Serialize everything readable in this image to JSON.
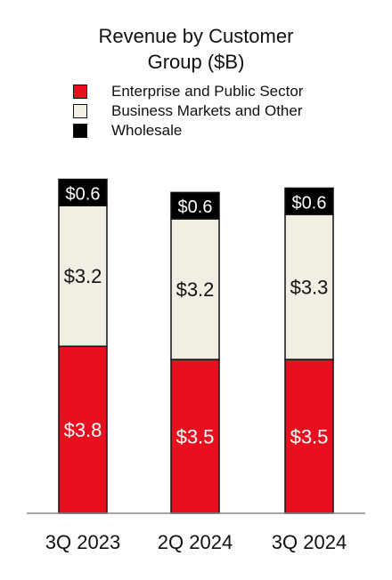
{
  "chart_data": {
    "type": "bar",
    "stacked": true,
    "title": "Revenue by Customer Group ($B)",
    "title_lines": [
      "Revenue by Customer",
      "Group ($B)"
    ],
    "categories": [
      "3Q 2023",
      "2Q 2024",
      "3Q 2024"
    ],
    "series": [
      {
        "name": "Enterprise and Public Sector",
        "color": "#e8101f",
        "values": [
          3.8,
          3.5,
          3.5
        ],
        "labels": [
          "$3.8",
          "$3.5",
          "$3.5"
        ],
        "label_color": "#ffffff"
      },
      {
        "name": "Business Markets and Other",
        "color": "#f3eee3",
        "values": [
          3.2,
          3.2,
          3.3
        ],
        "labels": [
          "$3.2",
          "$3.2",
          "$3.3"
        ],
        "label_color": "#111111"
      },
      {
        "name": "Wholesale",
        "color": "#000000",
        "values": [
          0.6,
          0.6,
          0.6
        ],
        "labels": [
          "$0.6",
          "$0.6",
          "$0.6"
        ],
        "label_color": "#ffffff"
      }
    ],
    "legend_position": "top",
    "grid": false
  }
}
